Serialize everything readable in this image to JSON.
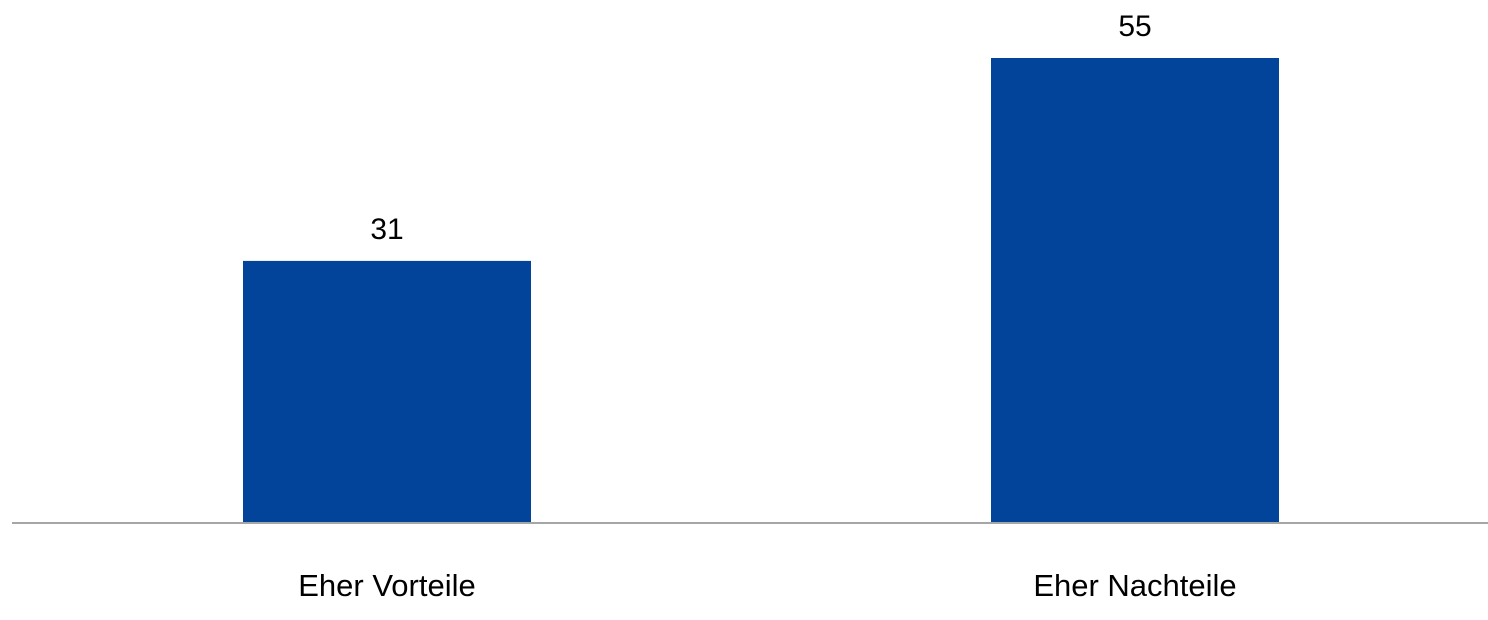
{
  "chart_data": {
    "type": "bar",
    "categories": [
      "Eher Vorteile",
      "Eher Nachteile"
    ],
    "values": [
      31,
      55
    ],
    "data_labels": [
      "31",
      "55"
    ],
    "title": "",
    "xlabel": "",
    "ylabel": "",
    "ylim": [
      0,
      55
    ],
    "grid": false,
    "legend": "none",
    "colors": {
      "bar": "#02449A",
      "axis": "#A6A6A6",
      "text": "#000000"
    }
  }
}
